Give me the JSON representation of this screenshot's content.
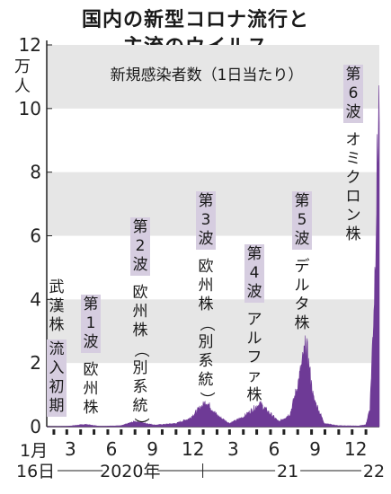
{
  "header": {
    "title_line1": "国内の新型コロナ流行と",
    "title_line2": "主流のウイルス",
    "subtitle": "新規感染者数（1日当たり）"
  },
  "waves": [
    {
      "label": "第1波",
      "strain": "欧州株"
    },
    {
      "label": "第2波",
      "strain": "欧州株（別系統）"
    },
    {
      "label": "第3波",
      "strain": "欧州株（別系統）"
    },
    {
      "label": "第4波",
      "strain": "アルファ株"
    },
    {
      "label": "第5波",
      "strain": "デルタ株"
    },
    {
      "label": "第6波",
      "strain": "オミクロン株"
    }
  ],
  "early_strain": {
    "top": "武漢株",
    "boxed": "流入初期"
  },
  "x_axis": {
    "start_label_top": "1月",
    "start_label_bottom": "16日",
    "month_ticks": [
      "3",
      "6",
      "9",
      "12",
      "3",
      "6",
      "9",
      "12"
    ],
    "year_labels": [
      "2020年",
      "21",
      "22"
    ]
  },
  "colors": {
    "area": "#6e3a96",
    "band": "#e6e6e6",
    "box": "#d6cde0"
  },
  "chart_data": {
    "type": "area",
    "y_unit": "万人",
    "ylabel": "万人",
    "ylim": [
      0,
      12
    ],
    "yticks": [
      0,
      2,
      4,
      6,
      8,
      10,
      12
    ],
    "x_start": "2020-01-16",
    "x_end": "2022-01-31",
    "series": [
      {
        "x": [
          "2020-01-16",
          "2020-03-01",
          "2020-04-11",
          "2020-05-15",
          "2020-07-01",
          "2020-07-31",
          "2020-08-07",
          "2020-09-15",
          "2020-11-01",
          "2020-12-01",
          "2021-01-08",
          "2021-02-01",
          "2021-03-01",
          "2021-04-01",
          "2021-05-08",
          "2021-05-20",
          "2021-06-20",
          "2021-07-15",
          "2021-08-01",
          "2021-08-20",
          "2021-09-05",
          "2021-09-30",
          "2021-10-30",
          "2021-12-15",
          "2022-01-01",
          "2022-01-10",
          "2022-01-20",
          "2022-01-27",
          "2022-01-31"
        ],
        "values": [
          0,
          0.01,
          0.07,
          0.01,
          0.03,
          0.16,
          0.15,
          0.05,
          0.1,
          0.25,
          0.78,
          0.35,
          0.1,
          0.3,
          0.72,
          0.55,
          0.15,
          0.4,
          1.3,
          2.58,
          0.9,
          0.1,
          0.03,
          0.02,
          0.06,
          0.6,
          4.2,
          8.5,
          10.4
        ]
      }
    ]
  }
}
